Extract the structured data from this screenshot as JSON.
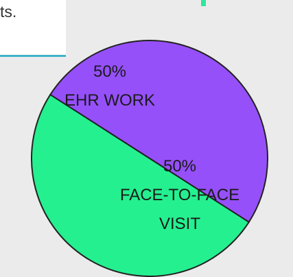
{
  "intro_text": "ts.",
  "chart_data": {
    "type": "pie",
    "categories": [
      "EHR WORK",
      "FACE-TO-FACE VISIT"
    ],
    "values": [
      50,
      50
    ],
    "value_labels": [
      "50%",
      "50%"
    ],
    "colors": [
      "#9650fa",
      "#24f08f"
    ]
  }
}
